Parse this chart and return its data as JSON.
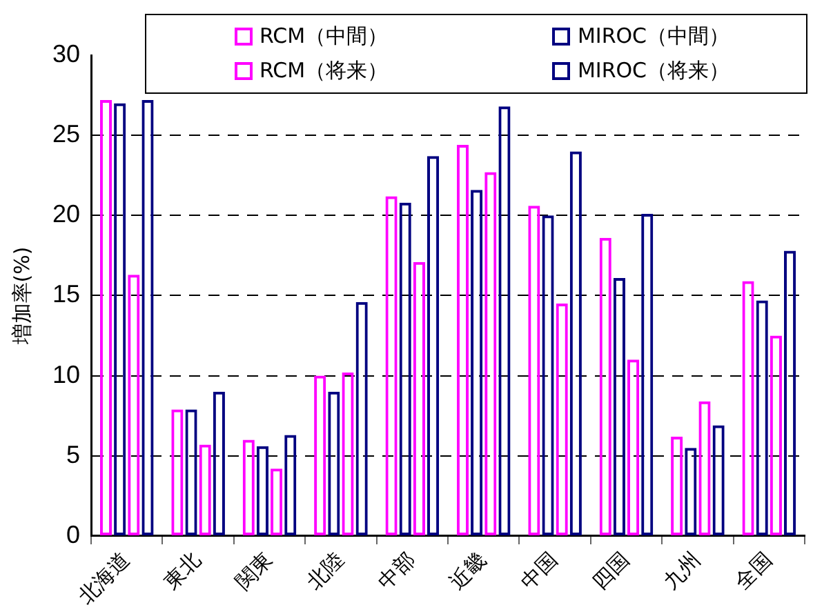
{
  "chart_data": {
    "type": "bar",
    "ylabel": "増加率(%)",
    "categories": [
      "北海道",
      "東北",
      "関東",
      "北陸",
      "中部",
      "近畿",
      "中国",
      "四国",
      "九州",
      "全国"
    ],
    "series": [
      {
        "name": "RCM（中間）",
        "color": "#ff00ff",
        "values": [
          27.2,
          7.9,
          6.0,
          10.0,
          21.2,
          24.4,
          20.6,
          18.6,
          6.2,
          15.9
        ]
      },
      {
        "name": "MIROC（中間）",
        "color": "#000080",
        "values": [
          27.0,
          7.9,
          5.6,
          9.0,
          20.8,
          21.6,
          20.0,
          16.1,
          5.5,
          14.7
        ]
      },
      {
        "name": "RCM（将来）",
        "color": "#ff00ff",
        "values": [
          16.3,
          5.7,
          4.2,
          10.2,
          17.1,
          22.7,
          14.5,
          11.0,
          8.4,
          12.5
        ]
      },
      {
        "name": "MIROC（将来）",
        "color": "#000080",
        "values": [
          27.2,
          9.0,
          6.3,
          14.6,
          23.7,
          26.8,
          24.0,
          20.1,
          6.9,
          17.8
        ]
      }
    ],
    "ylim": [
      0,
      30
    ],
    "yticks": [
      0,
      5,
      10,
      15,
      20,
      25,
      30
    ],
    "grid": "y",
    "legend": "top"
  }
}
